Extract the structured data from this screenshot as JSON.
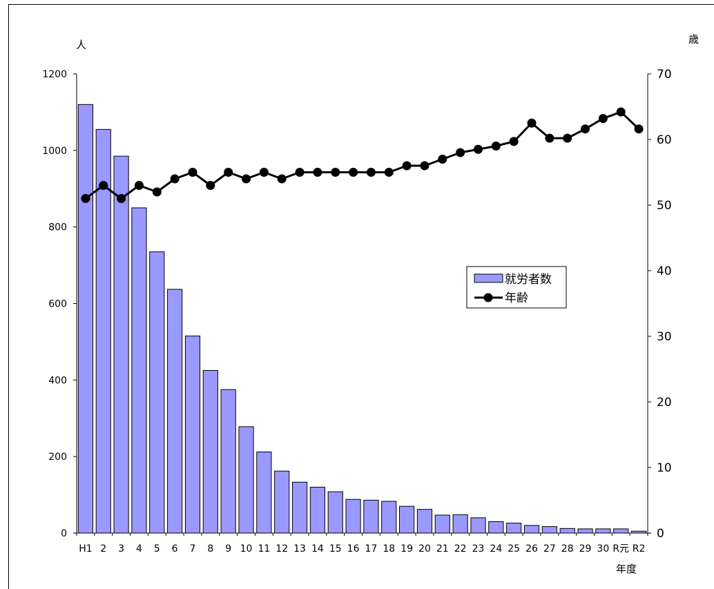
{
  "chart_data": {
    "type": "bar+line",
    "title": "",
    "categories": [
      "H1",
      "2",
      "3",
      "4",
      "5",
      "6",
      "7",
      "8",
      "9",
      "10",
      "11",
      "12",
      "13",
      "14",
      "15",
      "16",
      "17",
      "18",
      "19",
      "20",
      "21",
      "22",
      "23",
      "24",
      "25",
      "26",
      "27",
      "28",
      "29",
      "30",
      "R元",
      "R2"
    ],
    "xlabel": "年度",
    "left_axis": {
      "unit": "人",
      "ylim": [
        0,
        1200
      ],
      "ticks": [
        0,
        200,
        400,
        600,
        800,
        1000,
        1200
      ]
    },
    "right_axis": {
      "unit": "歳",
      "ylim": [
        0,
        70
      ],
      "ticks": [
        0,
        10,
        20,
        30,
        40,
        50,
        60,
        70
      ]
    },
    "series": [
      {
        "name": "就労者数",
        "type": "bar",
        "axis": "left",
        "color": "#9999ff",
        "values": [
          1120,
          1055,
          985,
          850,
          735,
          637,
          515,
          425,
          375,
          278,
          212,
          162,
          133,
          120,
          108,
          88,
          86,
          83,
          70,
          62,
          47,
          48,
          40,
          30,
          26,
          20,
          17,
          12,
          11,
          11,
          11,
          5
        ]
      },
      {
        "name": "年齢",
        "type": "line",
        "axis": "right",
        "color": "#000000",
        "values": [
          51,
          53,
          51,
          53,
          52,
          54,
          55,
          53,
          55,
          54,
          55,
          54,
          55,
          55,
          55,
          55,
          55,
          55,
          56,
          56,
          57,
          58,
          58.5,
          59,
          59.7,
          62.5,
          60.2,
          60.2,
          61.6,
          63.2,
          64.2,
          61.6
        ]
      }
    ],
    "legend_position": "right-middle",
    "grid": false
  }
}
